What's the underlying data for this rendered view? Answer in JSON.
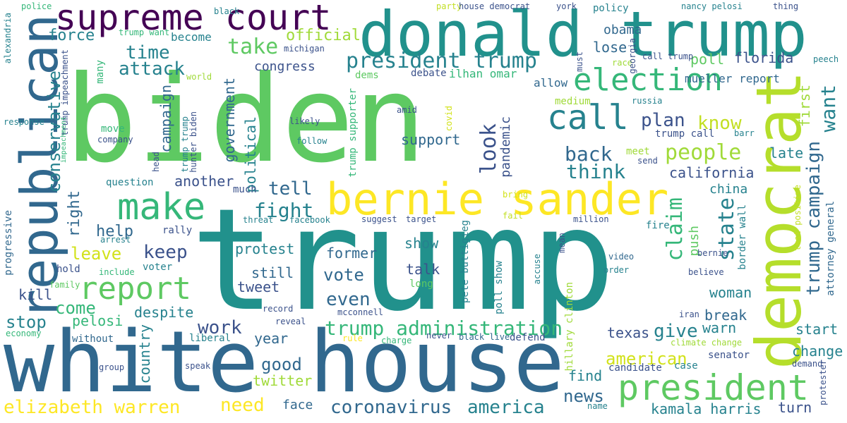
{
  "words": [
    {
      "text": "trump",
      "color": "#21918c"
    },
    {
      "text": "biden",
      "color": "#5ec962"
    },
    {
      "text": "white house",
      "color": "#31688e"
    },
    {
      "text": "donald trump",
      "color": "#21918c"
    },
    {
      "text": "democrat",
      "color": "#b5de2b"
    },
    {
      "text": "republican",
      "color": "#31688e"
    },
    {
      "text": "supreme court",
      "color": "#440154"
    },
    {
      "text": "bernie sander",
      "color": "#fde725"
    },
    {
      "text": "president",
      "color": "#5ec962"
    },
    {
      "text": "make",
      "color": "#35b779"
    },
    {
      "text": "report",
      "color": "#5ec962"
    },
    {
      "text": "election",
      "color": "#35b779"
    },
    {
      "text": "call",
      "color": "#26828e"
    },
    {
      "text": "president trump",
      "color": "#26828e"
    },
    {
      "text": "trump campaign",
      "color": "#31688e"
    },
    {
      "text": "trump administration",
      "color": "#35b779"
    },
    {
      "text": "coronavirus",
      "color": "#31688e"
    },
    {
      "text": "america",
      "color": "#26828e"
    },
    {
      "text": "elizabeth warren",
      "color": "#fde725"
    },
    {
      "text": "need",
      "color": "#fde725"
    },
    {
      "text": "people",
      "color": "#a0da39"
    },
    {
      "text": "want",
      "color": "#26828e"
    },
    {
      "text": "claim",
      "color": "#35b779"
    },
    {
      "text": "state",
      "color": "#26828e"
    },
    {
      "text": "look",
      "color": "#3b528b"
    },
    {
      "text": "conservative",
      "color": "#26828e"
    },
    {
      "text": "take",
      "color": "#5ec962"
    },
    {
      "text": "attack",
      "color": "#26828e"
    },
    {
      "text": "time",
      "color": "#26828e"
    },
    {
      "text": "official",
      "color": "#a0da39"
    },
    {
      "text": "force",
      "color": "#26828e"
    },
    {
      "text": "know",
      "color": "#c2df23"
    },
    {
      "text": "back",
      "color": "#31688e"
    },
    {
      "text": "think",
      "color": "#26828e"
    },
    {
      "text": "plan",
      "color": "#3b528b"
    },
    {
      "text": "tell",
      "color": "#31688e"
    },
    {
      "text": "fight",
      "color": "#26828e"
    },
    {
      "text": "keep",
      "color": "#3b528b"
    },
    {
      "text": "leave",
      "color": "#d2e21b"
    },
    {
      "text": "help",
      "color": "#31688e"
    },
    {
      "text": "right",
      "color": "#31688e"
    },
    {
      "text": "come",
      "color": "#35b779"
    },
    {
      "text": "stop",
      "color": "#26828e"
    },
    {
      "text": "work",
      "color": "#3b528b"
    },
    {
      "text": "vote",
      "color": "#31688e"
    },
    {
      "text": "even",
      "color": "#31688e"
    },
    {
      "text": "good",
      "color": "#31688e"
    },
    {
      "text": "american",
      "color": "#d2e21b"
    },
    {
      "text": "give",
      "color": "#26828e"
    },
    {
      "text": "news",
      "color": "#31688e"
    },
    {
      "text": "california",
      "color": "#3b528b"
    },
    {
      "text": "florida",
      "color": "#3b528b"
    },
    {
      "text": "poll",
      "color": "#5ec962"
    },
    {
      "text": "lose",
      "color": "#31688e"
    },
    {
      "text": "obama",
      "color": "#31688e"
    },
    {
      "text": "congress",
      "color": "#3b528b"
    },
    {
      "text": "support",
      "color": "#31688e"
    },
    {
      "text": "campaign",
      "color": "#31688e"
    },
    {
      "text": "government",
      "color": "#31688e"
    },
    {
      "text": "political",
      "color": "#26828e"
    },
    {
      "text": "another",
      "color": "#3b528b"
    },
    {
      "text": "protest",
      "color": "#26828e"
    },
    {
      "text": "former",
      "color": "#31688e"
    },
    {
      "text": "still",
      "color": "#31688e"
    },
    {
      "text": "tweet",
      "color": "#3b528b"
    },
    {
      "text": "talk",
      "color": "#3b528b"
    },
    {
      "text": "show",
      "color": "#26828e"
    },
    {
      "text": "pelosi",
      "color": "#35b779"
    },
    {
      "text": "despite",
      "color": "#26828e"
    },
    {
      "text": "country",
      "color": "#26828e"
    },
    {
      "text": "year",
      "color": "#31688e"
    },
    {
      "text": "twitter",
      "color": "#a0da39"
    },
    {
      "text": "face",
      "color": "#31688e"
    },
    {
      "text": "kill",
      "color": "#3b528b"
    },
    {
      "text": "woman",
      "color": "#26828e"
    },
    {
      "text": "break",
      "color": "#31688e"
    },
    {
      "text": "warn",
      "color": "#26828e"
    },
    {
      "text": "start",
      "color": "#26828e"
    },
    {
      "text": "change",
      "color": "#26828e"
    },
    {
      "text": "texas",
      "color": "#3b528b"
    },
    {
      "text": "find",
      "color": "#26828e"
    },
    {
      "text": "kamala harris",
      "color": "#26828e"
    },
    {
      "text": "turn",
      "color": "#3b528b"
    },
    {
      "text": "china",
      "color": "#26828e"
    },
    {
      "text": "push",
      "color": "#5ec962"
    },
    {
      "text": "late",
      "color": "#26828e"
    },
    {
      "text": "first",
      "color": "#a0da39"
    },
    {
      "text": "pandemic",
      "color": "#3b528b"
    },
    {
      "text": "allow",
      "color": "#31688e"
    },
    {
      "text": "medium",
      "color": "#a0da39"
    },
    {
      "text": "mueller report",
      "color": "#31688e"
    },
    {
      "text": "ilhan omar",
      "color": "#35b779"
    },
    {
      "text": "debate",
      "color": "#3b528b"
    },
    {
      "text": "dems",
      "color": "#5ec962"
    },
    {
      "text": "become",
      "color": "#26828e"
    },
    {
      "text": "trump want",
      "color": "#35b779"
    },
    {
      "text": "alexandria",
      "color": "#26828e"
    },
    {
      "text": "police",
      "color": "#35b779"
    },
    {
      "text": "black",
      "color": "#26828e"
    },
    {
      "text": "party",
      "color": "#c2df23"
    },
    {
      "text": "house democrat",
      "color": "#3b528b"
    },
    {
      "text": "york",
      "color": "#3b528b"
    },
    {
      "text": "policy",
      "color": "#26828e"
    },
    {
      "text": "nancy pelosi",
      "color": "#26828e"
    },
    {
      "text": "thing",
      "color": "#3b528b"
    },
    {
      "text": "michigan",
      "color": "#3b528b"
    },
    {
      "text": "many",
      "color": "#35b779"
    },
    {
      "text": "trump impeachment",
      "color": "#3b528b"
    },
    {
      "text": "impeachment",
      "color": "#35b779"
    },
    {
      "text": "response",
      "color": "#26828e"
    },
    {
      "text": "move",
      "color": "#35b779"
    },
    {
      "text": "company",
      "color": "#3b528b"
    },
    {
      "text": "trump trump",
      "color": "#26828e"
    },
    {
      "text": "hunter biden",
      "color": "#3b528b"
    },
    {
      "text": "head",
      "color": "#3b528b"
    },
    {
      "text": "likely",
      "color": "#3b528b"
    },
    {
      "text": "follow",
      "color": "#26828e"
    },
    {
      "text": "amid",
      "color": "#3b528b"
    },
    {
      "text": "covid",
      "color": "#d2e21b"
    },
    {
      "text": "trump supporter",
      "color": "#35b779"
    },
    {
      "text": "question",
      "color": "#26828e"
    },
    {
      "text": "much",
      "color": "#3b528b"
    },
    {
      "text": "rally",
      "color": "#3b528b"
    },
    {
      "text": "arrest",
      "color": "#26828e"
    },
    {
      "text": "progressive",
      "color": "#31688e"
    },
    {
      "text": "include",
      "color": "#35b779"
    },
    {
      "text": "voter",
      "color": "#26828e"
    },
    {
      "text": "hold",
      "color": "#3b528b"
    },
    {
      "text": "family",
      "color": "#5ec962"
    },
    {
      "text": "economy",
      "color": "#35b779"
    },
    {
      "text": "without",
      "color": "#31688e"
    },
    {
      "text": "group",
      "color": "#3b528b"
    },
    {
      "text": "speak",
      "color": "#3b528b"
    },
    {
      "text": "liberal",
      "color": "#26828e"
    },
    {
      "text": "rule",
      "color": "#fde725"
    },
    {
      "text": "charge",
      "color": "#35b779"
    },
    {
      "text": "never",
      "color": "#3b528b"
    },
    {
      "text": "black live",
      "color": "#31688e"
    },
    {
      "text": "defend",
      "color": "#3b528b"
    },
    {
      "text": "climate change",
      "color": "#a0da39"
    },
    {
      "text": "senator",
      "color": "#3b528b"
    },
    {
      "text": "demand",
      "color": "#3b528b"
    },
    {
      "text": "protester",
      "color": "#3b528b"
    },
    {
      "text": "attorney general",
      "color": "#31688e"
    },
    {
      "text": "test positive",
      "color": "#c2df23"
    },
    {
      "text": "border wall",
      "color": "#26828e"
    },
    {
      "text": "bernie",
      "color": "#3b528b"
    },
    {
      "text": "believe",
      "color": "#3b528b"
    },
    {
      "text": "iran",
      "color": "#3b528b"
    },
    {
      "text": "video",
      "color": "#31688e"
    },
    {
      "text": "order",
      "color": "#26828e"
    },
    {
      "text": "hillary clinton",
      "color": "#a0da39"
    },
    {
      "text": "mean",
      "color": "#3b528b"
    },
    {
      "text": "accuse",
      "color": "#26828e"
    },
    {
      "text": "poll show",
      "color": "#26828e"
    },
    {
      "text": "pete buttigieg",
      "color": "#26828e"
    },
    {
      "text": "long",
      "color": "#5ec962"
    },
    {
      "text": "record",
      "color": "#3b528b"
    },
    {
      "text": "reveal",
      "color": "#3b528b"
    },
    {
      "text": "mcconnell",
      "color": "#3b528b"
    },
    {
      "text": "threat",
      "color": "#26828e"
    },
    {
      "text": "facebook",
      "color": "#26828e"
    },
    {
      "text": "suggest",
      "color": "#3b528b"
    },
    {
      "text": "target",
      "color": "#3b528b"
    },
    {
      "text": "million",
      "color": "#3b528b"
    },
    {
      "text": "fire",
      "color": "#26828e"
    },
    {
      "text": "fail",
      "color": "#c2df23"
    },
    {
      "text": "bring",
      "color": "#d2e21b"
    },
    {
      "text": "meet",
      "color": "#a0da39"
    },
    {
      "text": "send",
      "color": "#3b528b"
    },
    {
      "text": "russia",
      "color": "#26828e"
    },
    {
      "text": "trump call",
      "color": "#3b528b"
    },
    {
      "text": "barr",
      "color": "#26828e"
    },
    {
      "text": "must",
      "color": "#3b528b"
    },
    {
      "text": "race",
      "color": "#a0da39"
    },
    {
      "text": "georgia",
      "color": "#3b528b"
    },
    {
      "text": "call trump",
      "color": "#3b528b"
    },
    {
      "text": "peech",
      "color": "#26828e"
    },
    {
      "text": "world",
      "color": "#a0da39"
    },
    {
      "text": "candidate",
      "color": "#3b528b"
    },
    {
      "text": "case",
      "color": "#26828e"
    },
    {
      "text": "name",
      "color": "#26828e"
    }
  ]
}
